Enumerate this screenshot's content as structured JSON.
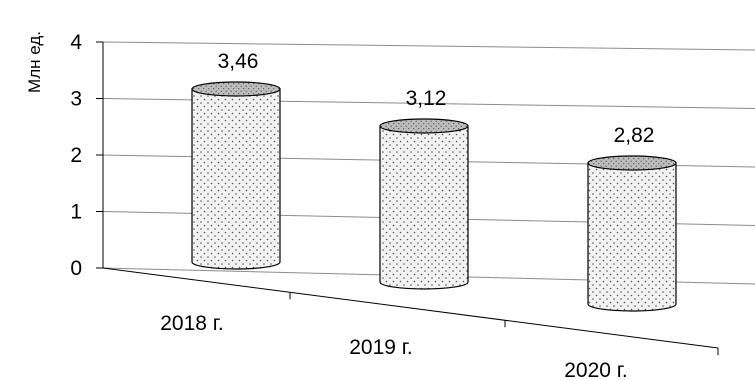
{
  "chart_data": {
    "type": "bar",
    "style": "3d-cylinder",
    "categories": [
      "2018 г.",
      "2019 г.",
      "2020 г."
    ],
    "values": [
      3.46,
      3.12,
      2.82
    ],
    "value_labels": [
      "3,46",
      "3,12",
      "2,82"
    ],
    "ylabel": "Млн ед.",
    "ylim": [
      0,
      4
    ],
    "yticks": [
      "0",
      "1",
      "2",
      "3",
      "4"
    ],
    "grid": true,
    "legend": "none",
    "colors": {
      "fill": "#f2f2f2",
      "dots": "#555555",
      "top": "#bdbdbd",
      "grid": "#8c8c8c",
      "outline": "#000000"
    }
  }
}
